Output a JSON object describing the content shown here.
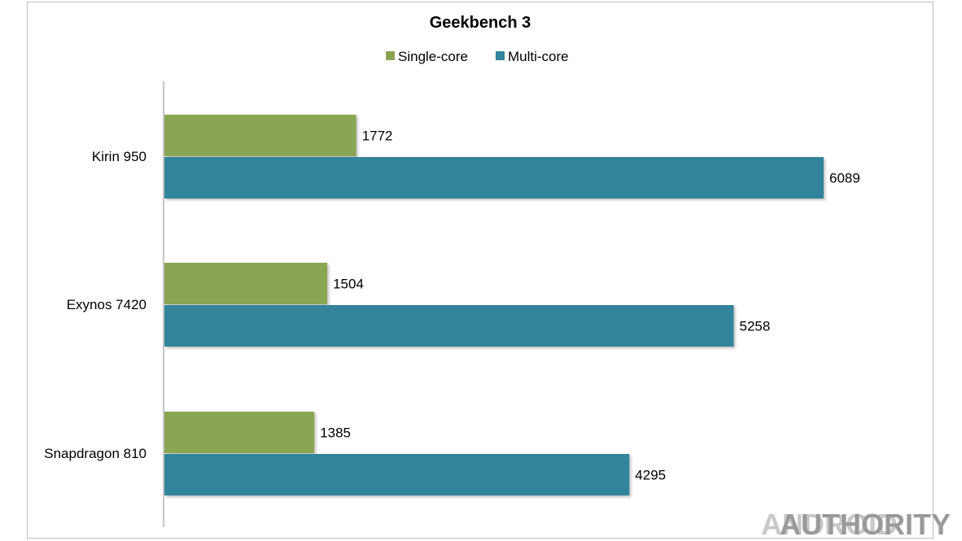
{
  "chart_data": {
    "type": "bar",
    "orientation": "horizontal",
    "title": "Geekbench 3",
    "categories": [
      "Kirin 950",
      "Exynos 7420",
      "Snapdragon 810"
    ],
    "series": [
      {
        "name": "Single-core",
        "color": "#8aa552",
        "values": [
          1772,
          1504,
          1385
        ]
      },
      {
        "name": "Multi-core",
        "color": "#31849b",
        "values": [
          6089,
          5258,
          4295
        ]
      }
    ],
    "xlim": [
      0,
      6800
    ],
    "legend_position": "top",
    "grid": false,
    "data_labels": true
  },
  "watermark": {
    "part1": "ANDROID",
    "part2": "AUTHORITY"
  }
}
